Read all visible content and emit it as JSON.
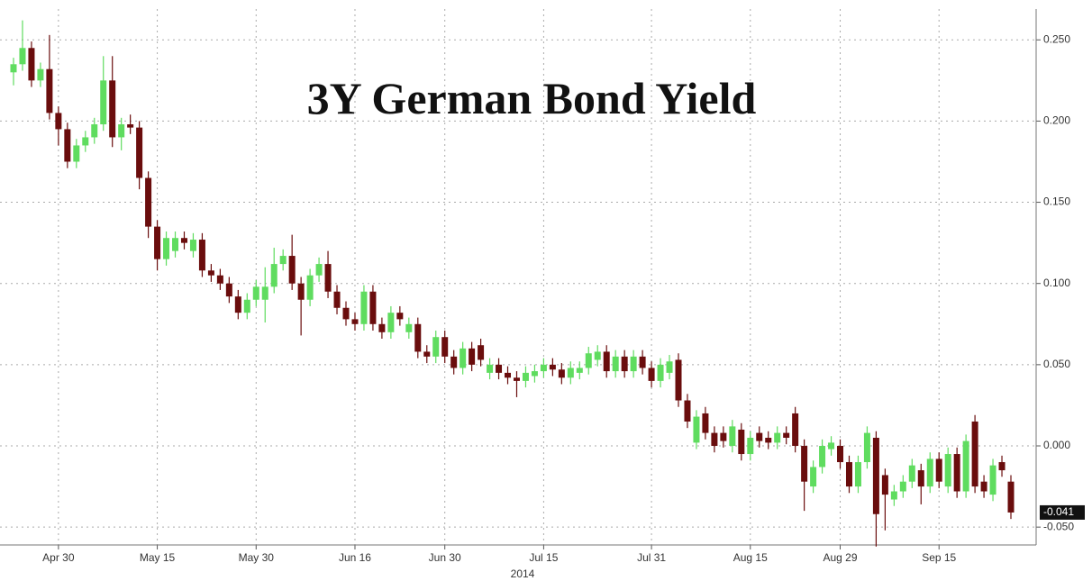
{
  "chart_data": {
    "type": "candlestick",
    "title": "3Y German Bond Yield",
    "xlabel": "2014",
    "categories": [
      null,
      null,
      null,
      null,
      null,
      "Apr 30",
      null,
      null,
      null,
      null,
      null,
      null,
      null,
      null,
      null,
      null,
      "May 15",
      null,
      null,
      null,
      null,
      null,
      null,
      null,
      null,
      null,
      null,
      "May 30",
      null,
      null,
      null,
      null,
      null,
      null,
      null,
      null,
      null,
      null,
      "Jun 16",
      null,
      null,
      null,
      null,
      null,
      null,
      null,
      null,
      null,
      "Jun 30",
      null,
      null,
      null,
      null,
      null,
      null,
      null,
      null,
      null,
      null,
      "Jul 15",
      null,
      null,
      null,
      null,
      null,
      null,
      null,
      null,
      null,
      null,
      null,
      "Jul 31",
      null,
      null,
      null,
      null,
      null,
      null,
      null,
      null,
      null,
      null,
      "Aug 15",
      null,
      null,
      null,
      null,
      null,
      null,
      null,
      null,
      null,
      "Aug 29",
      null,
      null,
      null,
      null,
      null,
      null,
      null,
      null,
      null,
      null,
      "Sep 15",
      null,
      null,
      null,
      null,
      null,
      null,
      null,
      null
    ],
    "open": [
      0.23,
      0.235,
      0.245,
      0.225,
      0.232,
      0.205,
      0.195,
      0.175,
      0.185,
      0.19,
      0.198,
      0.225,
      0.19,
      0.198,
      0.196,
      0.165,
      0.135,
      0.115,
      0.12,
      0.128,
      0.12,
      0.127,
      0.108,
      0.105,
      0.1,
      0.092,
      0.082,
      0.09,
      0.09,
      0.098,
      0.112,
      0.117,
      0.1,
      0.09,
      0.105,
      0.112,
      0.095,
      0.085,
      0.078,
      0.075,
      0.095,
      0.075,
      0.07,
      0.082,
      0.07,
      0.075,
      0.058,
      0.055,
      0.067,
      0.055,
      0.048,
      0.06,
      0.062,
      0.045,
      0.05,
      0.045,
      0.042,
      0.04,
      0.043,
      0.046,
      0.05,
      0.047,
      0.042,
      0.045,
      0.048,
      0.053,
      0.058,
      0.046,
      0.055,
      0.046,
      0.055,
      0.048,
      0.04,
      0.045,
      0.053,
      0.028,
      0.002,
      0.02,
      0.008,
      0.008,
      0.0,
      0.01,
      -0.005,
      0.008,
      0.005,
      0.002,
      0.008,
      0.02,
      0.0,
      -0.025,
      -0.013,
      -0.002,
      0.0,
      -0.01,
      -0.025,
      -0.01,
      0.005,
      -0.018,
      -0.033,
      -0.028,
      -0.022,
      -0.015,
      -0.025,
      -0.008,
      -0.025,
      -0.005,
      -0.028,
      0.015,
      -0.022,
      -0.03,
      -0.01,
      -0.022
    ],
    "high": [
      0.239,
      0.262,
      0.249,
      0.236,
      0.253,
      0.209,
      0.199,
      0.189,
      0.194,
      0.202,
      0.24,
      0.24,
      0.202,
      0.204,
      0.2,
      0.169,
      0.139,
      0.132,
      0.132,
      0.132,
      0.131,
      0.131,
      0.112,
      0.109,
      0.104,
      0.096,
      0.094,
      0.102,
      0.11,
      0.122,
      0.121,
      0.13,
      0.104,
      0.109,
      0.116,
      0.12,
      0.099,
      0.089,
      0.082,
      0.099,
      0.099,
      0.079,
      0.086,
      0.086,
      0.079,
      0.079,
      0.062,
      0.071,
      0.071,
      0.059,
      0.064,
      0.064,
      0.066,
      0.054,
      0.054,
      0.049,
      0.046,
      0.049,
      0.05,
      0.054,
      0.054,
      0.051,
      0.052,
      0.052,
      0.061,
      0.062,
      0.062,
      0.059,
      0.059,
      0.059,
      0.059,
      0.052,
      0.054,
      0.056,
      0.057,
      0.032,
      0.022,
      0.024,
      0.012,
      0.012,
      0.016,
      0.014,
      0.009,
      0.012,
      0.009,
      0.012,
      0.012,
      0.024,
      0.004,
      -0.009,
      0.004,
      0.006,
      0.004,
      -0.006,
      -0.006,
      0.012,
      0.009,
      -0.014,
      -0.024,
      -0.018,
      -0.008,
      -0.011,
      -0.004,
      -0.004,
      -0.001,
      -0.001,
      0.007,
      0.019,
      -0.018,
      -0.008,
      -0.006,
      -0.018
    ],
    "low": [
      0.222,
      0.231,
      0.221,
      0.221,
      0.201,
      0.185,
      0.171,
      0.171,
      0.181,
      0.186,
      0.194,
      0.184,
      0.182,
      0.192,
      0.158,
      0.128,
      0.108,
      0.111,
      0.116,
      0.121,
      0.116,
      0.104,
      0.101,
      0.096,
      0.088,
      0.078,
      0.078,
      0.086,
      0.076,
      0.094,
      0.108,
      0.096,
      0.068,
      0.086,
      0.101,
      0.091,
      0.081,
      0.074,
      0.071,
      0.071,
      0.071,
      0.066,
      0.066,
      0.074,
      0.066,
      0.054,
      0.051,
      0.051,
      0.051,
      0.044,
      0.044,
      0.046,
      0.049,
      0.041,
      0.041,
      0.038,
      0.03,
      0.036,
      0.039,
      0.042,
      0.043,
      0.038,
      0.038,
      0.041,
      0.044,
      0.049,
      0.042,
      0.042,
      0.042,
      0.042,
      0.044,
      0.036,
      0.036,
      0.041,
      0.024,
      0.011,
      -0.002,
      0.004,
      -0.004,
      -0.001,
      -0.004,
      -0.009,
      -0.009,
      -0.001,
      -0.002,
      -0.002,
      0.001,
      -0.004,
      -0.04,
      -0.029,
      -0.017,
      -0.006,
      -0.014,
      -0.029,
      -0.029,
      -0.014,
      -0.062,
      -0.052,
      -0.037,
      -0.032,
      -0.026,
      -0.036,
      -0.029,
      -0.026,
      -0.029,
      -0.032,
      -0.032,
      -0.029,
      -0.032,
      -0.034,
      -0.019,
      -0.045
    ],
    "close": [
      0.235,
      0.245,
      0.225,
      0.232,
      0.205,
      0.195,
      0.175,
      0.185,
      0.19,
      0.198,
      0.225,
      0.19,
      0.198,
      0.196,
      0.165,
      0.135,
      0.115,
      0.128,
      0.128,
      0.125,
      0.127,
      0.108,
      0.105,
      0.1,
      0.092,
      0.082,
      0.09,
      0.098,
      0.098,
      0.112,
      0.117,
      0.1,
      0.09,
      0.105,
      0.112,
      0.095,
      0.085,
      0.078,
      0.075,
      0.095,
      0.075,
      0.07,
      0.082,
      0.078,
      0.075,
      0.058,
      0.055,
      0.067,
      0.055,
      0.048,
      0.06,
      0.05,
      0.053,
      0.05,
      0.045,
      0.042,
      0.04,
      0.045,
      0.046,
      0.05,
      0.047,
      0.042,
      0.048,
      0.048,
      0.057,
      0.058,
      0.046,
      0.055,
      0.046,
      0.055,
      0.048,
      0.04,
      0.05,
      0.052,
      0.028,
      0.015,
      0.018,
      0.008,
      0.0,
      0.003,
      0.012,
      -0.005,
      0.005,
      0.003,
      0.002,
      0.008,
      0.005,
      0.0,
      -0.022,
      -0.013,
      0.0,
      0.002,
      -0.01,
      -0.025,
      -0.01,
      0.008,
      -0.042,
      -0.03,
      -0.028,
      -0.022,
      -0.012,
      -0.025,
      -0.008,
      -0.022,
      -0.005,
      -0.028,
      0.003,
      -0.025,
      -0.028,
      -0.012,
      -0.015,
      -0.041
    ],
    "last_label": "-0.041",
    "up_color": "#5fdc5f",
    "down_color": "#6a0d0d",
    "ylim": [
      -0.061,
      0.269
    ],
    "yticks": [
      {
        "value": -0.05,
        "label": "-0.050"
      },
      {
        "value": 0,
        "label": "0.000"
      },
      {
        "value": 0.05,
        "label": "0.050"
      },
      {
        "value": 0.1,
        "label": "0.100"
      },
      {
        "value": 0.15,
        "label": "0.150"
      },
      {
        "value": 0.2,
        "label": "0.200"
      },
      {
        "value": 0.25,
        "label": "0.250"
      }
    ],
    "grid": true
  }
}
